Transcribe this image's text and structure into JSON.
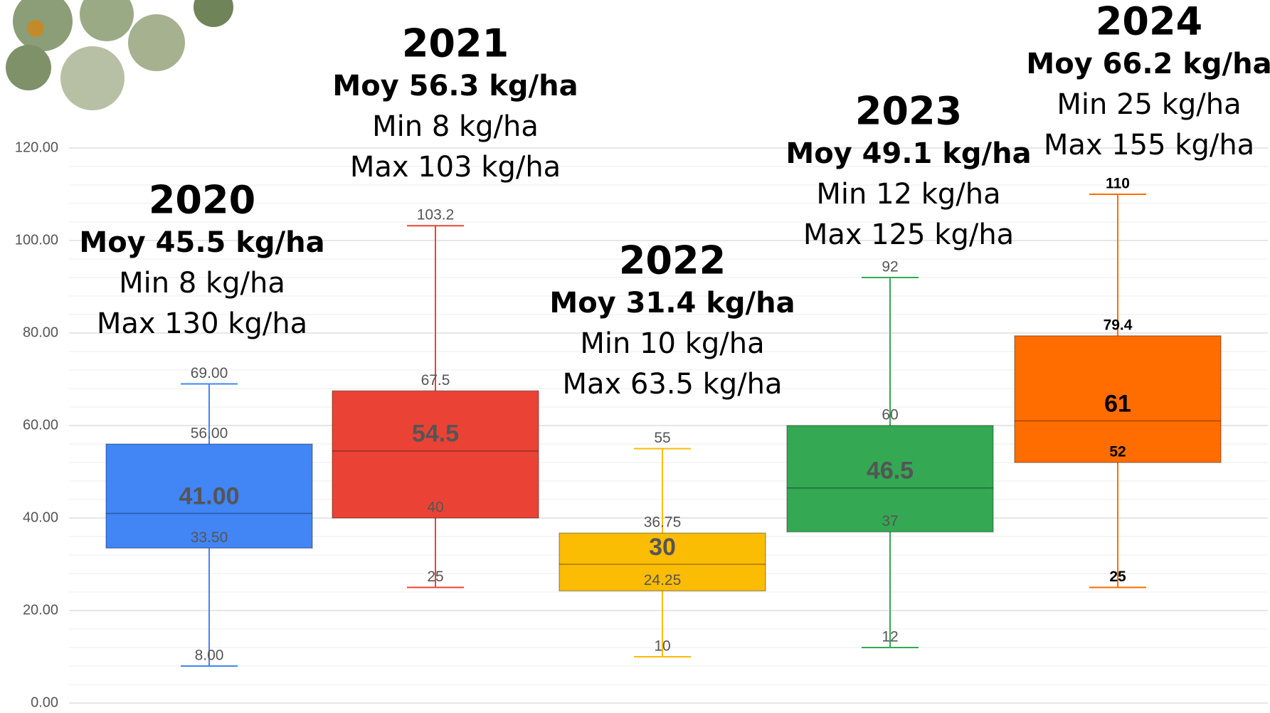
{
  "chart_data": {
    "type": "box",
    "ylim": [
      0,
      120
    ],
    "yticks": [
      {
        "value": 0,
        "label": "0.00"
      },
      {
        "value": 20,
        "label": "20.00"
      },
      {
        "value": 40,
        "label": "40.00"
      },
      {
        "value": 60,
        "label": "60.00"
      },
      {
        "value": 80,
        "label": "80.00"
      },
      {
        "value": 100,
        "label": "100.00"
      },
      {
        "value": 120,
        "label": "120.00"
      }
    ],
    "grid": true,
    "series": [
      {
        "name": "2020",
        "color": "#4285f4",
        "label_color": "#555555",
        "values": [
          8,
          33.5,
          41,
          56,
          69
        ],
        "value_labels": [
          "8.00",
          "33.50",
          "41.00",
          "56.00",
          "69.00"
        ],
        "notes": [
          "Moy 45.5 kg/ha",
          "Min 8 kg/ha",
          "Max 130 kg/ha"
        ]
      },
      {
        "name": "2021",
        "color": "#ea4335",
        "label_color": "#555555",
        "values": [
          25,
          40,
          54.5,
          67.5,
          103.2
        ],
        "notes": [
          "Moy 56.3 kg/ha",
          "Min 8 kg/ha",
          "Max 103 kg/ha"
        ]
      },
      {
        "name": "2022",
        "color": "#fbbc04",
        "label_color": "#555555",
        "values": [
          10,
          24.25,
          30,
          36.75,
          55
        ],
        "notes": [
          "Moy 31.4 kg/ha",
          "Min 10 kg/ha",
          "Max 63.5 kg/ha"
        ]
      },
      {
        "name": "2023",
        "color": "#34a853",
        "label_color": "#555555",
        "values": [
          12,
          37,
          46.5,
          60,
          92
        ],
        "notes": [
          "Moy 49.1 kg/ha",
          "Min 12 kg/ha",
          "Max 125 kg/ha"
        ]
      },
      {
        "name": "2024",
        "color": "#ff6d01",
        "label_color": "#000000",
        "values": [
          25,
          52,
          61,
          79.4,
          110
        ],
        "notes": [
          "Moy 66.2 kg/ha",
          "Min 25 kg/ha",
          "Max 155 kg/ha"
        ]
      }
    ]
  }
}
